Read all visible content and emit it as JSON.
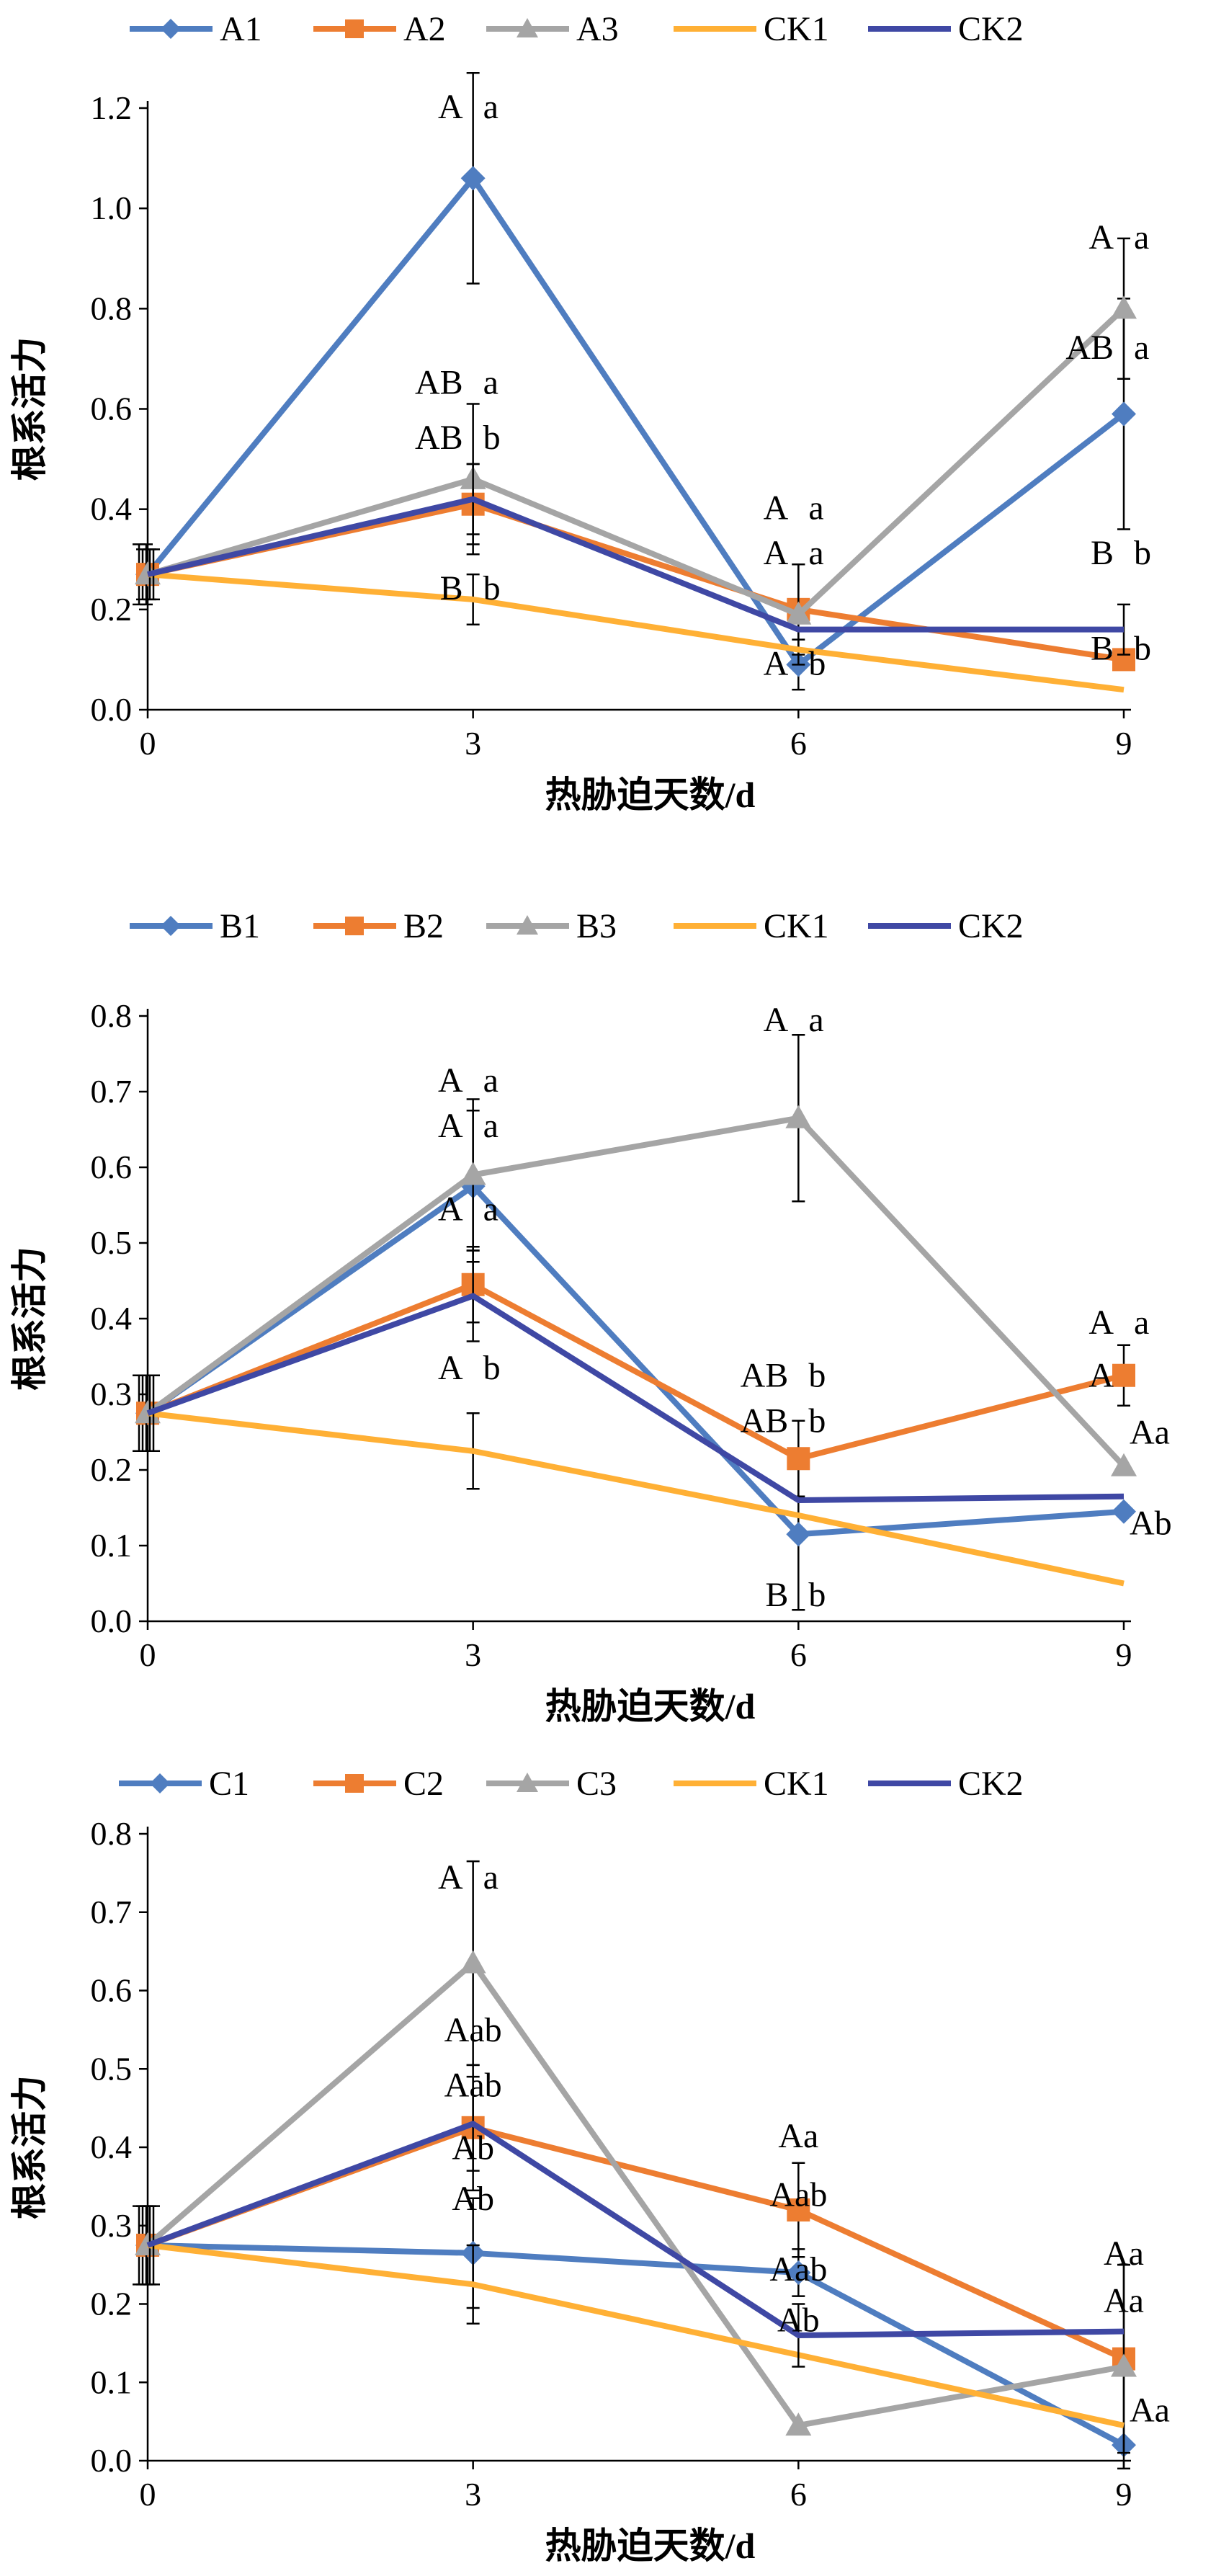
{
  "chart_data": [
    {
      "type": "line",
      "xlabel": "热胁迫天数/d",
      "ylabel": "根系活力",
      "x": [
        0,
        3,
        6,
        9
      ],
      "ylim": [
        0,
        1.2
      ],
      "yticks": [
        "0.0",
        "0.2",
        "0.4",
        "0.6",
        "0.8",
        "1.0",
        "1.2"
      ],
      "ytick_values": [
        0,
        0.2,
        0.4,
        0.6,
        0.8,
        1.0,
        1.2
      ],
      "grid": false,
      "legend": "top",
      "series": [
        {
          "name": "A1",
          "marker": "diamond",
          "color": "#4F7DC0",
          "values": [
            0.27,
            1.06,
            0.09,
            0.59
          ],
          "err": [
            0.06,
            0.21,
            0.05,
            0.23
          ],
          "labels": [
            "",
            "A",
            "A",
            "AB"
          ]
        },
        {
          "name": "A2",
          "marker": "square",
          "color": "#ED7D31",
          "values": [
            0.27,
            0.41,
            0.2,
            0.1
          ],
          "err": [
            0.05,
            0.08,
            0.09,
            0.02
          ],
          "labels": [
            "",
            "AB",
            "A",
            "B"
          ]
        },
        {
          "name": "A3",
          "marker": "triangle",
          "color": "#A5A5A5",
          "values": [
            0.27,
            0.46,
            0.19,
            0.8
          ],
          "err": [
            0.06,
            0.15,
            0.1,
            0.14
          ],
          "labels": [
            "",
            "AB",
            "A",
            "A"
          ]
        },
        {
          "name": "CK1",
          "marker": "none",
          "color": "#FFB035",
          "values": [
            0.27,
            0.22,
            0.12,
            0.04
          ],
          "err": [
            0.05,
            0.05,
            0.0,
            0.0
          ],
          "labels": [
            "",
            "B",
            "",
            ""
          ]
        },
        {
          "name": "CK2",
          "marker": "none",
          "color": "#3F48A4",
          "values": [
            0.27,
            0.42,
            0.16,
            0.16
          ],
          "err": [
            0.05,
            0.07,
            0.0,
            0.05
          ],
          "labels": [
            "",
            "",
            "",
            "B"
          ]
        }
      ],
      "annotations": [
        {
          "text": "A",
          "x": 3,
          "y": 1.18
        },
        {
          "text": "a",
          "x": 3,
          "y": 1.18,
          "side": "right"
        },
        {
          "text": "AB",
          "x": 3,
          "y": 0.63
        },
        {
          "text": "a",
          "x": 3,
          "y": 0.63,
          "side": "right"
        },
        {
          "text": "AB",
          "x": 3,
          "y": 0.52
        },
        {
          "text": "b",
          "x": 3,
          "y": 0.52,
          "side": "right"
        },
        {
          "text": "B",
          "x": 3,
          "y": 0.22
        },
        {
          "text": "b",
          "x": 3,
          "y": 0.22,
          "side": "right"
        },
        {
          "text": "A",
          "x": 6,
          "y": 0.38
        },
        {
          "text": "a",
          "x": 6,
          "y": 0.38,
          "side": "right"
        },
        {
          "text": "A",
          "x": 6,
          "y": 0.29
        },
        {
          "text": "a",
          "x": 6,
          "y": 0.29,
          "side": "right"
        },
        {
          "text": "A",
          "x": 6,
          "y": 0.07
        },
        {
          "text": "b",
          "x": 6,
          "y": 0.07,
          "side": "right"
        },
        {
          "text": "A",
          "x": 9,
          "y": 0.92
        },
        {
          "text": "a",
          "x": 9,
          "y": 0.92,
          "side": "right"
        },
        {
          "text": "AB",
          "x": 9,
          "y": 0.7
        },
        {
          "text": "a",
          "x": 9,
          "y": 0.7,
          "side": "right"
        },
        {
          "text": "B",
          "x": 9,
          "y": 0.29
        },
        {
          "text": "b",
          "x": 9,
          "y": 0.29,
          "side": "right"
        },
        {
          "text": "B",
          "x": 9,
          "y": 0.1
        },
        {
          "text": "b",
          "x": 9,
          "y": 0.1,
          "side": "right"
        }
      ]
    },
    {
      "type": "line",
      "xlabel": "热胁迫天数/d",
      "ylabel": "根系活力",
      "x": [
        0,
        3,
        6,
        9
      ],
      "ylim": [
        0,
        0.8
      ],
      "yticks": [
        "0.0",
        "0.1",
        "0.2",
        "0.3",
        "0.4",
        "0.5",
        "0.6",
        "0.7",
        "0.8"
      ],
      "ytick_values": [
        0,
        0.1,
        0.2,
        0.3,
        0.4,
        0.5,
        0.6,
        0.7,
        0.8
      ],
      "grid": false,
      "legend": "top",
      "series": [
        {
          "name": "B1",
          "marker": "diamond",
          "color": "#4F7DC0",
          "values": [
            0.275,
            0.575,
            0.115,
            0.145
          ],
          "err": [
            0.05,
            0.1,
            0.1,
            0.0
          ],
          "labels": []
        },
        {
          "name": "B2",
          "marker": "square",
          "color": "#ED7D31",
          "values": [
            0.275,
            0.445,
            0.215,
            0.325
          ],
          "err": [
            0.05,
            0.05,
            0.05,
            0.04
          ],
          "labels": []
        },
        {
          "name": "B3",
          "marker": "triangle",
          "color": "#A5A5A5",
          "values": [
            0.275,
            0.59,
            0.665,
            0.205
          ],
          "err": [
            0.05,
            0.1,
            0.11,
            0.0
          ],
          "labels": []
        },
        {
          "name": "CK1",
          "marker": "none",
          "color": "#FFB035",
          "values": [
            0.275,
            0.225,
            0.14,
            0.05
          ],
          "err": [
            0.05,
            0.05,
            0.0,
            0.0
          ],
          "labels": []
        },
        {
          "name": "CK2",
          "marker": "none",
          "color": "#3F48A4",
          "values": [
            0.275,
            0.43,
            0.16,
            0.165
          ],
          "err": [
            0.05,
            0.06,
            0.0,
            0.0
          ],
          "labels": []
        }
      ],
      "annotations": [
        {
          "text": "A",
          "x": 3,
          "y": 0.7
        },
        {
          "text": "a",
          "x": 3,
          "y": 0.7,
          "side": "right"
        },
        {
          "text": "A",
          "x": 3,
          "y": 0.64
        },
        {
          "text": "a",
          "x": 3,
          "y": 0.64,
          "side": "right"
        },
        {
          "text": "A",
          "x": 3,
          "y": 0.53
        },
        {
          "text": "a",
          "x": 3,
          "y": 0.53,
          "side": "right"
        },
        {
          "text": "A",
          "x": 3,
          "y": 0.32
        },
        {
          "text": "b",
          "x": 3,
          "y": 0.32,
          "side": "right"
        },
        {
          "text": "A",
          "x": 6,
          "y": 0.78
        },
        {
          "text": "a",
          "x": 6,
          "y": 0.78,
          "side": "right"
        },
        {
          "text": "AB",
          "x": 6,
          "y": 0.31
        },
        {
          "text": "b",
          "x": 6,
          "y": 0.31,
          "side": "right"
        },
        {
          "text": "AB",
          "x": 6,
          "y": 0.25
        },
        {
          "text": "b",
          "x": 6,
          "y": 0.25,
          "side": "right"
        },
        {
          "text": "B",
          "x": 6,
          "y": 0.02
        },
        {
          "text": "b",
          "x": 6,
          "y": 0.02,
          "side": "right"
        },
        {
          "text": "A",
          "x": 9,
          "y": 0.38
        },
        {
          "text": "a",
          "x": 9,
          "y": 0.38,
          "side": "right"
        },
        {
          "text": "A",
          "x": 9,
          "y": 0.31
        },
        {
          "text": "Aa",
          "x": 9,
          "y": 0.235,
          "side": "far"
        },
        {
          "text": "Ab",
          "x": 9,
          "y": 0.115,
          "side": "far"
        }
      ]
    },
    {
      "type": "line",
      "xlabel": "热胁迫天数/d",
      "ylabel": "根系活力",
      "x": [
        0,
        3,
        6,
        9
      ],
      "ylim": [
        0,
        0.8
      ],
      "yticks": [
        "0.0",
        "0.1",
        "0.2",
        "0.3",
        "0.4",
        "0.5",
        "0.6",
        "0.7",
        "0.8"
      ],
      "ytick_values": [
        0,
        0.1,
        0.2,
        0.3,
        0.4,
        0.5,
        0.6,
        0.7,
        0.8
      ],
      "grid": false,
      "legend": "top",
      "series": [
        {
          "name": "C1",
          "marker": "diamond",
          "color": "#4F7DC0",
          "values": [
            0.275,
            0.265,
            0.24,
            0.02
          ],
          "err": [
            0.05,
            0.07,
            0.03,
            0.0
          ],
          "labels": []
        },
        {
          "name": "C2",
          "marker": "square",
          "color": "#ED7D31",
          "values": [
            0.275,
            0.425,
            0.32,
            0.13
          ],
          "err": [
            0.05,
            0.08,
            0.06,
            0.12
          ],
          "labels": []
        },
        {
          "name": "C3",
          "marker": "triangle",
          "color": "#A5A5A5",
          "values": [
            0.275,
            0.635,
            0.045,
            0.12
          ],
          "err": [
            0.05,
            0.13,
            0.0,
            0.13
          ],
          "labels": []
        },
        {
          "name": "CK1",
          "marker": "none",
          "color": "#FFB035",
          "values": [
            0.275,
            0.225,
            0.135,
            0.045
          ],
          "err": [
            0.05,
            0.05,
            0.0,
            0.0
          ],
          "labels": []
        },
        {
          "name": "CK2",
          "marker": "none",
          "color": "#3F48A4",
          "values": [
            0.275,
            0.43,
            0.16,
            0.165
          ],
          "err": [
            0.05,
            0.06,
            0.04,
            0.0
          ],
          "labels": []
        }
      ],
      "annotations": [
        {
          "text": "A",
          "x": 3,
          "y": 0.73
        },
        {
          "text": "a",
          "x": 3,
          "y": 0.73,
          "side": "right"
        },
        {
          "text": "Aab",
          "x": 3,
          "y": 0.535,
          "side": "center"
        },
        {
          "text": "Aab",
          "x": 3,
          "y": 0.465,
          "side": "center"
        },
        {
          "text": "Ab",
          "x": 3,
          "y": 0.385,
          "side": "center"
        },
        {
          "text": "Ab",
          "x": 3,
          "y": 0.32,
          "side": "center"
        },
        {
          "text": "Aa",
          "x": 6,
          "y": 0.4,
          "side": "center"
        },
        {
          "text": "Aab",
          "x": 6,
          "y": 0.325,
          "side": "center"
        },
        {
          "text": "Aab",
          "x": 6,
          "y": 0.23,
          "side": "center"
        },
        {
          "text": "Ab",
          "x": 6,
          "y": 0.165,
          "side": "center"
        },
        {
          "text": "Aa",
          "x": 9,
          "y": 0.25,
          "side": "center"
        },
        {
          "text": "Aa",
          "x": 9,
          "y": 0.19,
          "side": "center"
        },
        {
          "text": "Aa",
          "x": 9,
          "y": 0.05,
          "side": "far"
        }
      ]
    }
  ]
}
